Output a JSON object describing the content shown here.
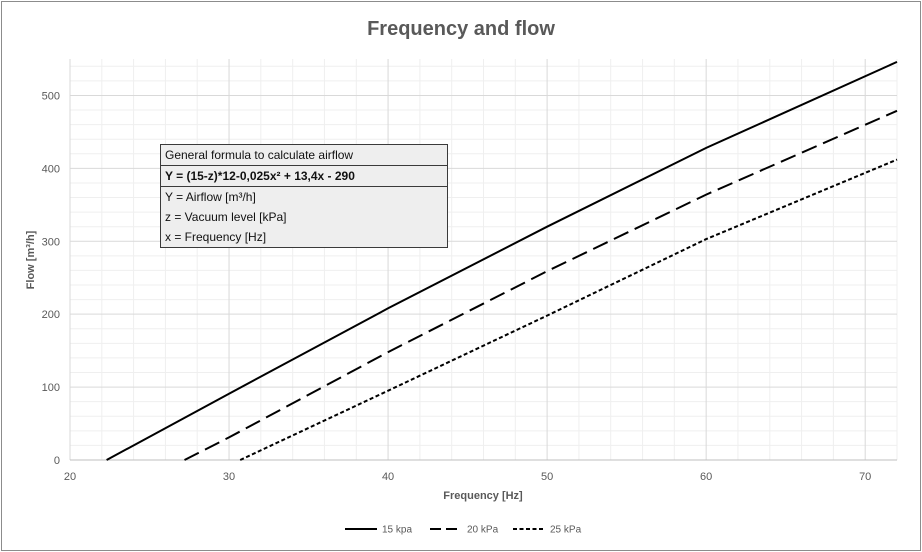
{
  "chart_data": {
    "type": "line",
    "title": "Frequency and flow",
    "xlabel": "Frequency [Hz]",
    "ylabel": "Flow [m³/h]",
    "xlim": [
      20,
      72
    ],
    "ylim": [
      0,
      550
    ],
    "xticks": [
      20,
      30,
      40,
      50,
      60,
      70
    ],
    "yticks": [
      0,
      100,
      200,
      300,
      400,
      500
    ],
    "grid": true,
    "legend_position": "bottom",
    "series": [
      {
        "name": "15 kpa",
        "style": "solid",
        "color": "#000000",
        "x": [
          22.3,
          30,
          40,
          50,
          60,
          72
        ],
        "y": [
          0,
          91,
          208,
          320,
          428,
          546
        ]
      },
      {
        "name": "20 kPa",
        "style": "dashed",
        "color": "#000000",
        "x": [
          27.2,
          30,
          40,
          50,
          60,
          72
        ],
        "y": [
          0,
          31,
          148,
          259,
          364,
          479
        ]
      },
      {
        "name": "25 kPa",
        "style": "dotted",
        "color": "#000000",
        "x": [
          30.7,
          40,
          50,
          60,
          72
        ],
        "y": [
          0,
          95,
          198,
          303,
          412
        ]
      }
    ]
  },
  "formula_box": {
    "header": "General formula to calculate airflow",
    "formula": "Y = (15-z)*12-0,025x² + 13,4x - 290",
    "lines": [
      "Y = Airflow [m³/h]",
      "z = Vacuum level [kPa]",
      "x = Frequency [Hz]"
    ]
  }
}
